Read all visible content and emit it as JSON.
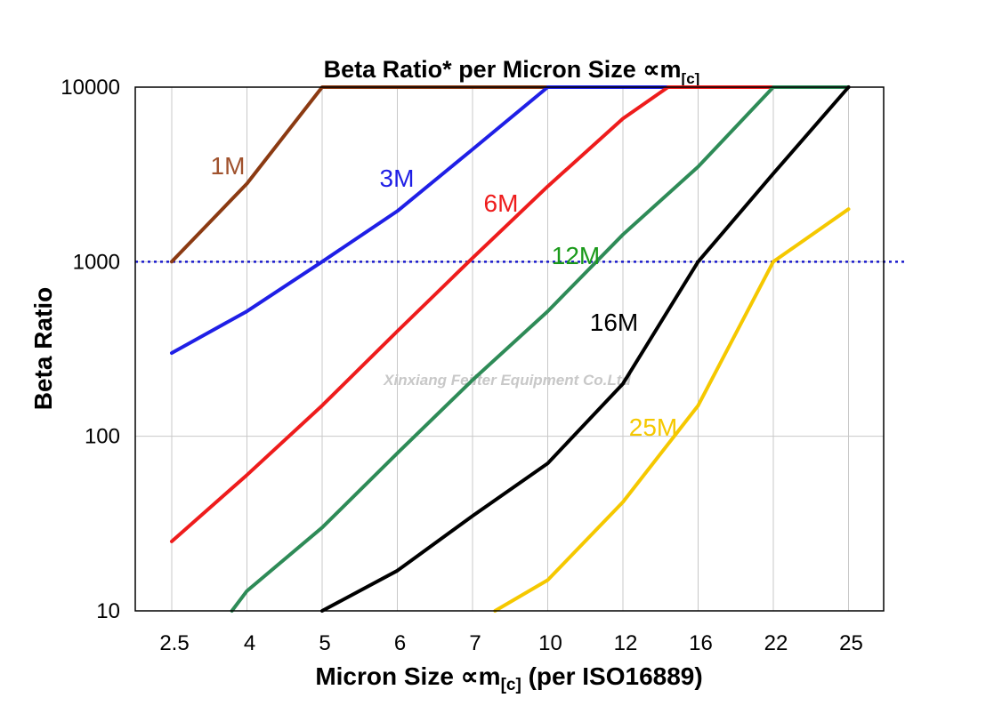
{
  "chart_data": {
    "type": "line",
    "title": "Beta Ratio* per Micron Size ∝m",
    "title_sub": "[c]",
    "xlabel": "Micron Size ∝m",
    "xlabel_sub": "[c]",
    "xlabel_suffix": " (per ISO16889)",
    "ylabel": "Beta Ratio",
    "y_scale": "log",
    "ylim": [
      10,
      10000
    ],
    "y_ticks": [
      "10",
      "100",
      "1000",
      "10000"
    ],
    "x_categories": [
      "2.5",
      "4",
      "5",
      "6",
      "7",
      "10",
      "12",
      "16",
      "22",
      "25"
    ],
    "grid": true,
    "reference_line": {
      "y": 1000,
      "color": "#1a1acc",
      "style": "dotted"
    },
    "series": [
      {
        "name": "1M",
        "color": "#8b3a12",
        "label_color": "#a0522d",
        "points": [
          [
            0,
            1000
          ],
          [
            1,
            2800
          ],
          [
            2,
            10000
          ],
          [
            3,
            10000
          ],
          [
            4,
            10000
          ],
          [
            5,
            10000
          ]
        ]
      },
      {
        "name": "3M",
        "color": "#1f1fe6",
        "label_color": "#1f1fe6",
        "points": [
          [
            0,
            300
          ],
          [
            1,
            520
          ],
          [
            2,
            1000
          ],
          [
            3,
            1950
          ],
          [
            4,
            4400
          ],
          [
            5,
            10000
          ],
          [
            6,
            10000
          ],
          [
            7,
            10000
          ],
          [
            8,
            10000
          ],
          [
            9,
            10000
          ]
        ]
      },
      {
        "name": "6M",
        "color": "#ee1c1c",
        "label_color": "#ee1c1c",
        "points": [
          [
            0,
            25
          ],
          [
            1,
            60
          ],
          [
            2,
            150
          ],
          [
            3,
            400
          ],
          [
            4,
            1050
          ],
          [
            5,
            2700
          ],
          [
            6,
            6600
          ],
          [
            6.6,
            10000
          ],
          [
            7,
            10000
          ],
          [
            8,
            10000
          ],
          [
            9,
            10000
          ]
        ]
      },
      {
        "name": "12M",
        "color": "#2e8b57",
        "label_color": "#1a9a1a",
        "points": [
          [
            0.8,
            10
          ],
          [
            1,
            13
          ],
          [
            2,
            30
          ],
          [
            3,
            80
          ],
          [
            4,
            210
          ],
          [
            5,
            520
          ],
          [
            6,
            1430
          ],
          [
            7,
            3500
          ],
          [
            8,
            10000
          ],
          [
            9,
            10000
          ]
        ]
      },
      {
        "name": "16M",
        "color": "#000000",
        "label_color": "#000000",
        "points": [
          [
            2,
            10
          ],
          [
            3,
            17
          ],
          [
            4,
            35
          ],
          [
            5,
            70
          ],
          [
            6,
            200
          ],
          [
            7,
            1000
          ],
          [
            8,
            3200
          ],
          [
            9,
            10000
          ]
        ]
      },
      {
        "name": "25M",
        "color": "#f5c800",
        "label_color": "#f5c800",
        "points": [
          [
            4.3,
            10
          ],
          [
            5,
            15
          ],
          [
            6,
            42
          ],
          [
            7,
            150
          ],
          [
            8,
            1000
          ],
          [
            9,
            2000
          ]
        ]
      }
    ]
  },
  "watermark": "Xinxiang Feilter Equipment Co.Ltd"
}
